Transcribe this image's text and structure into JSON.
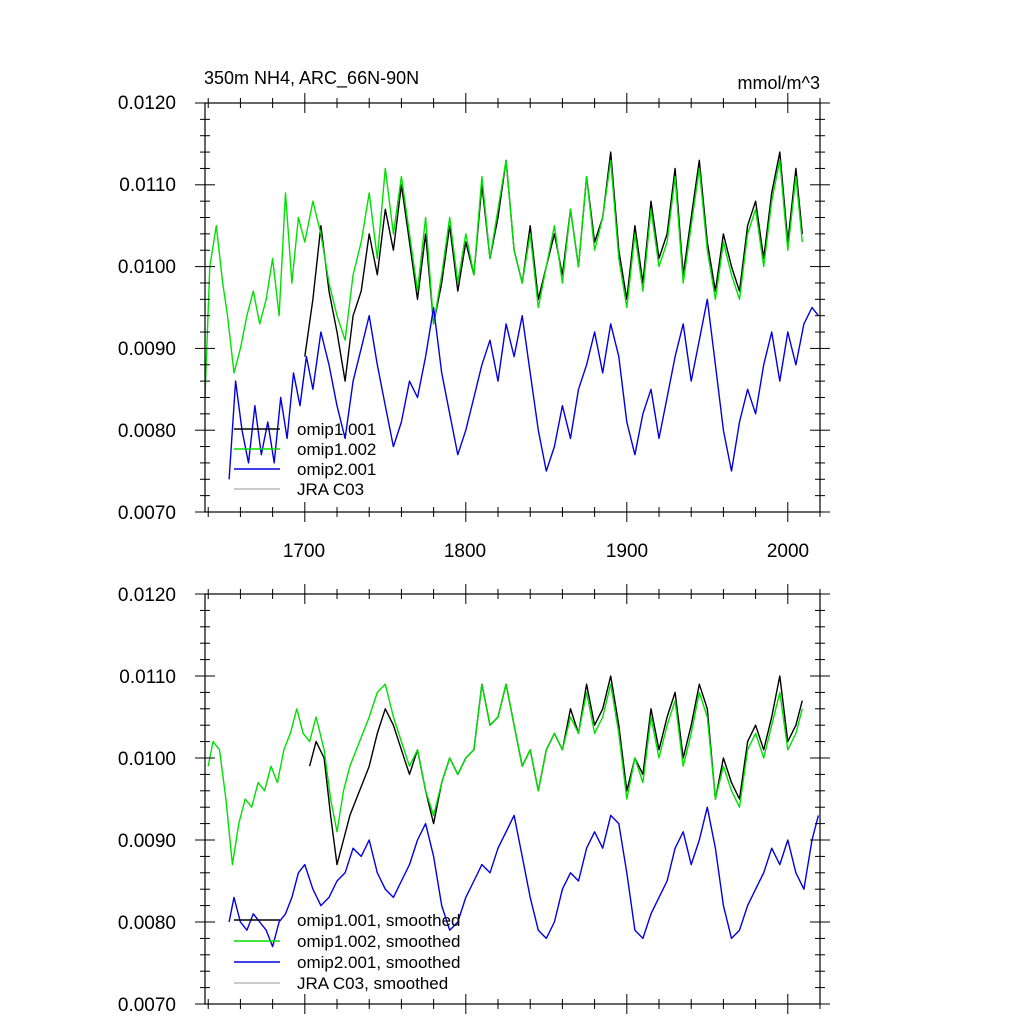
{
  "chart_data": [
    {
      "type": "line",
      "title": "350m NH4, ARC_66N-90N",
      "units": "mmol/m^3",
      "xlim": [
        1638,
        2020
      ],
      "ylim": [
        0.007,
        0.012
      ],
      "yticks": [
        "0.0070",
        "0.0080",
        "0.0090",
        "0.0100",
        "0.0110",
        "0.0120"
      ],
      "xticks": [
        "1700",
        "1800",
        "1900",
        "2000"
      ],
      "legend": [
        "omip1.001",
        "omip1.002",
        "omip2.001",
        "JRA C03"
      ],
      "series": [
        {
          "name": "omip1.001",
          "color": "#000000",
          "x": [
            1700,
            1705,
            1710,
            1715,
            1720,
            1725,
            1730,
            1735,
            1740,
            1745,
            1750,
            1755,
            1760,
            1765,
            1770,
            1775,
            1780,
            1785,
            1790,
            1795,
            1800,
            1805,
            1810,
            1815,
            1820,
            1825,
            1830,
            1835,
            1840,
            1845,
            1850,
            1855,
            1860,
            1865,
            1870,
            1875,
            1880,
            1885,
            1890,
            1895,
            1900,
            1905,
            1910,
            1915,
            1920,
            1925,
            1930,
            1935,
            1940,
            1945,
            1950,
            1955,
            1960,
            1965,
            1970,
            1975,
            1980,
            1985,
            1990,
            1995,
            2000,
            2005,
            2009
          ],
          "y": [
            0.0089,
            0.0096,
            0.0105,
            0.0097,
            0.0092,
            0.0086,
            0.0094,
            0.0097,
            0.0104,
            0.0099,
            0.0107,
            0.0102,
            0.011,
            0.0103,
            0.0096,
            0.0104,
            0.0093,
            0.0098,
            0.0105,
            0.0097,
            0.0103,
            0.0099,
            0.011,
            0.0101,
            0.0106,
            0.0113,
            0.0102,
            0.0098,
            0.0105,
            0.0096,
            0.01,
            0.0104,
            0.0099,
            0.0107,
            0.01,
            0.0111,
            0.0103,
            0.0106,
            0.0114,
            0.0102,
            0.0096,
            0.0105,
            0.0098,
            0.0108,
            0.0101,
            0.0104,
            0.0112,
            0.0099,
            0.0106,
            0.0113,
            0.0103,
            0.0097,
            0.0104,
            0.01,
            0.0097,
            0.0105,
            0.0108,
            0.0101,
            0.0109,
            0.0114,
            0.0103,
            0.0112,
            0.0104
          ]
        },
        {
          "name": "omip1.002",
          "color": "#00e000",
          "x": [
            1638,
            1641,
            1645,
            1649,
            1652,
            1656,
            1660,
            1664,
            1668,
            1672,
            1676,
            1680,
            1684,
            1688,
            1692,
            1696,
            1700,
            1705,
            1710,
            1715,
            1720,
            1725,
            1730,
            1735,
            1740,
            1745,
            1750,
            1755,
            1760,
            1765,
            1770,
            1775,
            1780,
            1785,
            1790,
            1795,
            1800,
            1805,
            1810,
            1815,
            1820,
            1825,
            1830,
            1835,
            1840,
            1845,
            1850,
            1855,
            1860,
            1865,
            1870,
            1875,
            1880,
            1885,
            1890,
            1895,
            1900,
            1905,
            1910,
            1915,
            1920,
            1925,
            1930,
            1935,
            1940,
            1945,
            1950,
            1955,
            1960,
            1965,
            1970,
            1975,
            1980,
            1985,
            1990,
            1995,
            2000,
            2005,
            2009
          ],
          "y": [
            0.0084,
            0.01,
            0.0105,
            0.0098,
            0.0094,
            0.0087,
            0.009,
            0.0094,
            0.0097,
            0.0093,
            0.0096,
            0.0101,
            0.0094,
            0.0109,
            0.0098,
            0.0106,
            0.0103,
            0.0108,
            0.0104,
            0.0098,
            0.0094,
            0.0091,
            0.0099,
            0.0103,
            0.0109,
            0.0101,
            0.0112,
            0.0104,
            0.0111,
            0.0104,
            0.0097,
            0.0106,
            0.0093,
            0.0099,
            0.0106,
            0.0098,
            0.0104,
            0.0099,
            0.0111,
            0.0101,
            0.0107,
            0.0113,
            0.0102,
            0.0098,
            0.0104,
            0.0095,
            0.01,
            0.0105,
            0.0098,
            0.0107,
            0.01,
            0.0111,
            0.0102,
            0.0106,
            0.0113,
            0.0101,
            0.0095,
            0.0104,
            0.0097,
            0.0107,
            0.01,
            0.0103,
            0.0111,
            0.0098,
            0.0105,
            0.0112,
            0.0102,
            0.0096,
            0.0103,
            0.0099,
            0.0096,
            0.0104,
            0.0107,
            0.01,
            0.0108,
            0.0113,
            0.0102,
            0.0111,
            0.0103
          ]
        },
        {
          "name": "omip2.001",
          "color": "#0000e0",
          "x": [
            1653,
            1657,
            1661,
            1665,
            1669,
            1673,
            1677,
            1681,
            1685,
            1689,
            1693,
            1697,
            1701,
            1705,
            1710,
            1715,
            1720,
            1725,
            1730,
            1735,
            1740,
            1745,
            1750,
            1755,
            1760,
            1765,
            1770,
            1775,
            1780,
            1785,
            1790,
            1795,
            1800,
            1805,
            1810,
            1815,
            1820,
            1825,
            1830,
            1835,
            1840,
            1845,
            1850,
            1855,
            1860,
            1865,
            1870,
            1875,
            1880,
            1885,
            1890,
            1895,
            1900,
            1905,
            1910,
            1915,
            1920,
            1925,
            1930,
            1935,
            1940,
            1945,
            1950,
            1955,
            1960,
            1965,
            1970,
            1975,
            1980,
            1985,
            1990,
            1995,
            2000,
            2005,
            2010,
            2015,
            2019
          ],
          "y": [
            0.0074,
            0.0086,
            0.008,
            0.0076,
            0.0083,
            0.0077,
            0.0081,
            0.0076,
            0.0084,
            0.0079,
            0.0087,
            0.0083,
            0.0089,
            0.0085,
            0.0092,
            0.0088,
            0.0083,
            0.0079,
            0.0086,
            0.009,
            0.0094,
            0.0088,
            0.0083,
            0.0078,
            0.0081,
            0.0086,
            0.0084,
            0.0089,
            0.0095,
            0.0087,
            0.0082,
            0.0077,
            0.008,
            0.0084,
            0.0088,
            0.0091,
            0.0086,
            0.0093,
            0.0089,
            0.0094,
            0.0087,
            0.008,
            0.0075,
            0.0078,
            0.0083,
            0.0079,
            0.0085,
            0.0088,
            0.0092,
            0.0087,
            0.0093,
            0.0089,
            0.0081,
            0.0077,
            0.0082,
            0.0085,
            0.0079,
            0.0084,
            0.0089,
            0.0093,
            0.0086,
            0.0091,
            0.0096,
            0.0088,
            0.008,
            0.0075,
            0.0081,
            0.0085,
            0.0082,
            0.0088,
            0.0092,
            0.0086,
            0.0092,
            0.0088,
            0.0093,
            0.0095,
            0.0094
          ]
        }
      ]
    },
    {
      "type": "line",
      "title": "",
      "xlim": [
        1638,
        2020
      ],
      "ylim": [
        0.007,
        0.012
      ],
      "yticks": [
        "0.0070",
        "0.0080",
        "0.0090",
        "0.0100",
        "0.0110",
        "0.0120"
      ],
      "xticks": [
        "1700",
        "1800",
        "1900",
        "2000"
      ],
      "legend": [
        "omip1.001, smoothed",
        "omip1.002, smoothed",
        "omip2.001, smoothed",
        "JRA C03, smoothed"
      ],
      "series": [
        {
          "name": "omip1.001, smoothed",
          "color": "#000000",
          "x": [
            1703,
            1707,
            1712,
            1716,
            1720,
            1724,
            1728,
            1732,
            1736,
            1740,
            1745,
            1750,
            1755,
            1760,
            1765,
            1770,
            1775,
            1780,
            1785,
            1790,
            1795,
            1800,
            1805,
            1810,
            1815,
            1820,
            1825,
            1830,
            1835,
            1840,
            1845,
            1850,
            1855,
            1860,
            1865,
            1870,
            1875,
            1880,
            1885,
            1890,
            1895,
            1900,
            1905,
            1910,
            1915,
            1920,
            1925,
            1930,
            1935,
            1940,
            1945,
            1950,
            1955,
            1960,
            1965,
            1970,
            1975,
            1980,
            1985,
            1990,
            1995,
            2000,
            2005,
            2009
          ],
          "y": [
            0.0099,
            0.0102,
            0.01,
            0.0093,
            0.0087,
            0.009,
            0.0093,
            0.0095,
            0.0097,
            0.0099,
            0.0103,
            0.0106,
            0.0104,
            0.0101,
            0.0098,
            0.0101,
            0.0096,
            0.0092,
            0.0097,
            0.01,
            0.0098,
            0.01,
            0.0101,
            0.0109,
            0.0104,
            0.0105,
            0.0109,
            0.0104,
            0.0099,
            0.0101,
            0.0096,
            0.0101,
            0.0103,
            0.0101,
            0.0106,
            0.0103,
            0.0109,
            0.0104,
            0.0106,
            0.011,
            0.0104,
            0.0096,
            0.01,
            0.0098,
            0.0106,
            0.0101,
            0.0105,
            0.0108,
            0.01,
            0.0104,
            0.0109,
            0.0106,
            0.0095,
            0.01,
            0.0097,
            0.0095,
            0.0102,
            0.0104,
            0.0101,
            0.0105,
            0.011,
            0.0102,
            0.0104,
            0.0107
          ]
        },
        {
          "name": "omip1.002, smoothed",
          "color": "#00e000",
          "x": [
            1640,
            1643,
            1647,
            1651,
            1655,
            1659,
            1663,
            1667,
            1671,
            1675,
            1679,
            1683,
            1687,
            1691,
            1695,
            1699,
            1703,
            1707,
            1712,
            1716,
            1720,
            1724,
            1728,
            1732,
            1736,
            1740,
            1745,
            1750,
            1755,
            1760,
            1765,
            1770,
            1775,
            1780,
            1785,
            1790,
            1795,
            1800,
            1805,
            1810,
            1815,
            1820,
            1825,
            1830,
            1835,
            1840,
            1845,
            1850,
            1855,
            1860,
            1865,
            1870,
            1875,
            1880,
            1885,
            1890,
            1895,
            1900,
            1905,
            1910,
            1915,
            1920,
            1925,
            1930,
            1935,
            1940,
            1945,
            1950,
            1955,
            1960,
            1965,
            1970,
            1975,
            1980,
            1985,
            1990,
            1995,
            2000,
            2005,
            2009
          ],
          "y": [
            0.0099,
            0.0102,
            0.0101,
            0.0095,
            0.0087,
            0.0092,
            0.0095,
            0.0094,
            0.0097,
            0.0096,
            0.0099,
            0.0097,
            0.0101,
            0.0103,
            0.0106,
            0.0103,
            0.0102,
            0.0105,
            0.0101,
            0.0095,
            0.0091,
            0.0096,
            0.0099,
            0.0101,
            0.0103,
            0.0105,
            0.0108,
            0.0109,
            0.0105,
            0.0102,
            0.0099,
            0.0101,
            0.0096,
            0.0093,
            0.0097,
            0.01,
            0.0098,
            0.01,
            0.0101,
            0.0109,
            0.0104,
            0.0105,
            0.0109,
            0.0104,
            0.0099,
            0.0101,
            0.0096,
            0.0101,
            0.0103,
            0.0101,
            0.0105,
            0.0103,
            0.0108,
            0.0103,
            0.0105,
            0.0109,
            0.0103,
            0.0095,
            0.01,
            0.0097,
            0.0105,
            0.01,
            0.0104,
            0.0107,
            0.0099,
            0.0103,
            0.0108,
            0.0105,
            0.0095,
            0.0099,
            0.0096,
            0.0094,
            0.0101,
            0.0103,
            0.01,
            0.0104,
            0.0108,
            0.0101,
            0.0103,
            0.0106
          ]
        },
        {
          "name": "omip2.001, smoothed",
          "color": "#0000e0",
          "x": [
            1653,
            1656,
            1660,
            1664,
            1668,
            1672,
            1676,
            1680,
            1684,
            1688,
            1692,
            1696,
            1700,
            1705,
            1710,
            1715,
            1720,
            1725,
            1730,
            1735,
            1740,
            1745,
            1750,
            1755,
            1760,
            1765,
            1770,
            1775,
            1780,
            1785,
            1790,
            1795,
            1800,
            1805,
            1810,
            1815,
            1820,
            1825,
            1830,
            1835,
            1840,
            1845,
            1850,
            1855,
            1860,
            1865,
            1870,
            1875,
            1880,
            1885,
            1890,
            1895,
            1900,
            1905,
            1910,
            1915,
            1920,
            1925,
            1930,
            1935,
            1940,
            1945,
            1950,
            1955,
            1960,
            1965,
            1970,
            1975,
            1980,
            1985,
            1990,
            1995,
            2000,
            2005,
            2010,
            2015,
            2019
          ],
          "y": [
            0.008,
            0.0083,
            0.008,
            0.0079,
            0.0081,
            0.008,
            0.0079,
            0.0077,
            0.008,
            0.0081,
            0.0083,
            0.0086,
            0.0087,
            0.0084,
            0.0082,
            0.0083,
            0.0085,
            0.0086,
            0.0089,
            0.0088,
            0.009,
            0.0086,
            0.0084,
            0.0083,
            0.0085,
            0.0087,
            0.009,
            0.0092,
            0.0088,
            0.0082,
            0.0079,
            0.008,
            0.0083,
            0.0085,
            0.0087,
            0.0086,
            0.0089,
            0.0091,
            0.0093,
            0.0088,
            0.0083,
            0.0079,
            0.0078,
            0.008,
            0.0084,
            0.0086,
            0.0085,
            0.0089,
            0.0091,
            0.0089,
            0.0093,
            0.0092,
            0.0086,
            0.0079,
            0.0078,
            0.0081,
            0.0083,
            0.0085,
            0.0089,
            0.0091,
            0.0087,
            0.009,
            0.0094,
            0.0089,
            0.0082,
            0.0078,
            0.0079,
            0.0082,
            0.0084,
            0.0086,
            0.0089,
            0.0087,
            0.009,
            0.0086,
            0.0084,
            0.009,
            0.0093
          ]
        }
      ]
    }
  ]
}
